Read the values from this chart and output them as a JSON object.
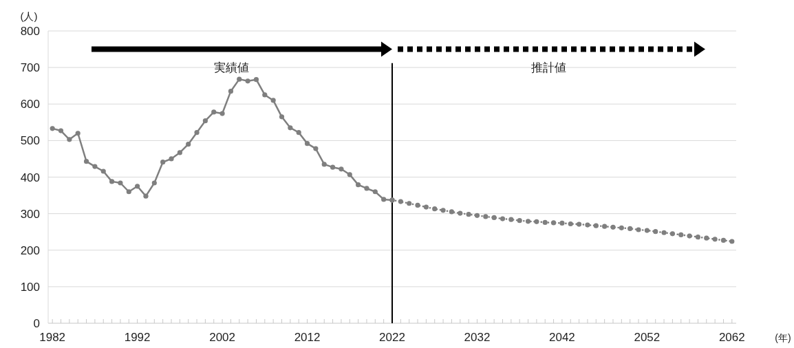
{
  "chart_data": {
    "type": "line",
    "ylabel": "(人)",
    "xlabel": "(年)",
    "annotations": [
      "実績値",
      "推計値"
    ],
    "xlim": [
      1981.5,
      2062.5
    ],
    "ylim": [
      0,
      800
    ],
    "yticks": [
      0,
      100,
      200,
      300,
      400,
      500,
      600,
      700,
      800
    ],
    "xticks": [
      1982,
      {
        "value": 1983,
        "label": null
      },
      {
        "value": 1984,
        "label": null
      },
      {
        "value": 1985,
        "label": null
      },
      {
        "value": 1986,
        "label": null
      },
      {
        "value": 1987,
        "label": null
      },
      {
        "value": 1988,
        "label": null
      },
      {
        "value": 1989,
        "label": null
      },
      {
        "value": 1990,
        "label": null
      },
      {
        "value": 1991,
        "label": null
      },
      1992,
      {
        "value": 1993,
        "label": null
      },
      {
        "value": 1994,
        "label": null
      },
      {
        "value": 1995,
        "label": null
      },
      {
        "value": 1996,
        "label": null
      },
      {
        "value": 1997,
        "label": null
      },
      {
        "value": 1998,
        "label": null
      },
      {
        "value": 1999,
        "label": null
      },
      {
        "value": 2000,
        "label": null
      },
      {
        "value": 2001,
        "label": null
      },
      2002,
      {
        "value": 2003,
        "label": null
      },
      {
        "value": 2004,
        "label": null
      },
      {
        "value": 2005,
        "label": null
      },
      {
        "value": 2006,
        "label": null
      },
      {
        "value": 2007,
        "label": null
      },
      {
        "value": 2008,
        "label": null
      },
      {
        "value": 2009,
        "label": null
      },
      {
        "value": 2010,
        "label": null
      },
      {
        "value": 2011,
        "label": null
      },
      2012,
      {
        "value": 2013,
        "label": null
      },
      {
        "value": 2014,
        "label": null
      },
      {
        "value": 2015,
        "label": null
      },
      {
        "value": 2016,
        "label": null
      },
      {
        "value": 2017,
        "label": null
      },
      {
        "value": 2018,
        "label": null
      },
      {
        "value": 2019,
        "label": null
      },
      {
        "value": 2020,
        "label": null
      },
      {
        "value": 2021,
        "label": null
      },
      2022,
      {
        "value": 2023,
        "label": null
      },
      {
        "value": 2024,
        "label": null
      },
      {
        "value": 2025,
        "label": null
      },
      {
        "value": 2026,
        "label": null
      },
      {
        "value": 2027,
        "label": null
      },
      {
        "value": 2028,
        "label": null
      },
      {
        "value": 2029,
        "label": null
      },
      {
        "value": 2030,
        "label": null
      },
      {
        "value": 2031,
        "label": null
      },
      2032,
      {
        "value": 2033,
        "label": null
      },
      {
        "value": 2034,
        "label": null
      },
      {
        "value": 2035,
        "label": null
      },
      {
        "value": 2036,
        "label": null
      },
      {
        "value": 2037,
        "label": null
      },
      {
        "value": 2038,
        "label": null
      },
      {
        "value": 2039,
        "label": null
      },
      {
        "value": 2040,
        "label": null
      },
      {
        "value": 2041,
        "label": null
      },
      2042,
      {
        "value": 2043,
        "label": null
      },
      {
        "value": 2044,
        "label": null
      },
      {
        "value": 2045,
        "label": null
      },
      {
        "value": 2046,
        "label": null
      },
      {
        "value": 2047,
        "label": null
      },
      {
        "value": 2048,
        "label": null
      },
      {
        "value": 2049,
        "label": null
      },
      {
        "value": 2050,
        "label": null
      },
      {
        "value": 2051,
        "label": null
      },
      2052,
      {
        "value": 2053,
        "label": null
      },
      {
        "value": 2054,
        "label": null
      },
      {
        "value": 2055,
        "label": null
      },
      {
        "value": 2056,
        "label": null
      },
      {
        "value": 2057,
        "label": null
      },
      {
        "value": 2058,
        "label": null
      },
      {
        "value": 2059,
        "label": null
      },
      {
        "value": 2060,
        "label": null
      },
      {
        "value": 2061,
        "label": null
      },
      2062
    ],
    "grid": "y",
    "marker": "circle",
    "ref_lines": [
      {
        "axis": "x",
        "value": 2022,
        "color": "#000000"
      }
    ],
    "series": [
      {
        "color": "#7f7f7f",
        "line_style": "solid",
        "x": [
          1982,
          1983,
          1984,
          1985,
          1986,
          1987,
          1988,
          1989,
          1990,
          1991,
          1992,
          1993,
          1994,
          1995,
          1996,
          1997,
          1998,
          1999,
          2000,
          2001,
          2002,
          2003,
          2004,
          2005,
          2006,
          2007,
          2008,
          2009,
          2010,
          2011,
          2012,
          2013,
          2014,
          2015,
          2016,
          2017,
          2018,
          2019,
          2020,
          2021,
          2022
        ],
        "values": [
          533,
          527,
          503,
          520,
          443,
          429,
          416,
          388,
          384,
          360,
          375,
          348,
          384,
          441,
          450,
          467,
          490,
          522,
          554,
          578,
          574,
          635,
          668,
          663,
          667,
          625,
          610,
          565,
          535,
          522,
          492,
          478,
          435,
          427,
          422,
          407,
          379,
          369,
          360,
          339,
          337
        ]
      },
      {
        "color": "#7f7f7f",
        "line_style": "dotted",
        "x": [
          2022,
          2023,
          2024,
          2025,
          2026,
          2027,
          2028,
          2029,
          2030,
          2031,
          2032,
          2033,
          2034,
          2035,
          2036,
          2037,
          2038,
          2039,
          2040,
          2041,
          2042,
          2043,
          2044,
          2045,
          2046,
          2047,
          2048,
          2049,
          2050,
          2051,
          2052,
          2053,
          2054,
          2055,
          2056,
          2057,
          2058,
          2059,
          2060,
          2061,
          2062
        ],
        "values": [
          337,
          333,
          328,
          323,
          318,
          313,
          309,
          305,
          301,
          298,
          295,
          292,
          289,
          286,
          284,
          281,
          279,
          278,
          276,
          275,
          274,
          272,
          271,
          269,
          267,
          265,
          263,
          261,
          259,
          256,
          254,
          251,
          248,
          245,
          242,
          239,
          236,
          233,
          230,
          227,
          224
        ]
      }
    ]
  }
}
